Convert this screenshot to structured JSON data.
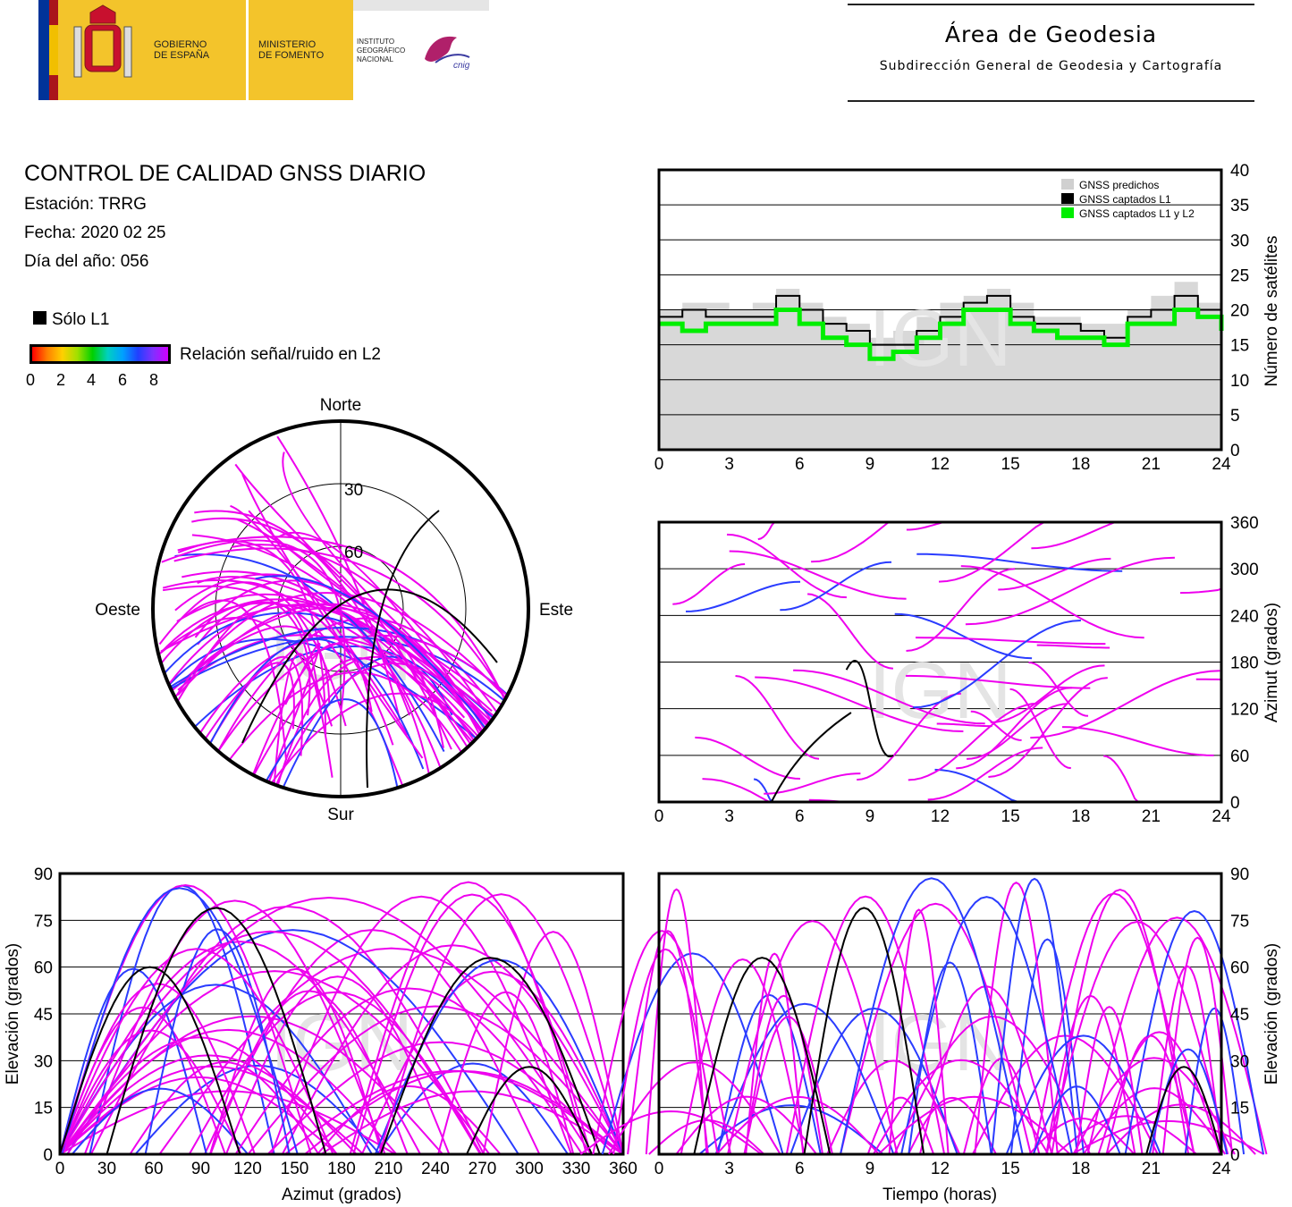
{
  "header": {
    "gov_label_1": "GOBIERNO",
    "gov_label_2": "DE ESPAÑA",
    "ministry_label_1": "MINISTERIO",
    "ministry_label_2": "DE FOMENTO",
    "ign_label_1": "INSTITUTO",
    "ign_label_2": "GEOGRÁFICO",
    "ign_label_3": "NACIONAL",
    "ign_logo_text": "cnig",
    "area_title": "Área de Geodesia",
    "area_subtitle": "Subdirección General de Geodesia y Cartografía"
  },
  "info": {
    "title": "CONTROL DE CALIDAD GNSS DIARIO",
    "station": "Estación: TRRG",
    "date": "Fecha: 2020 02 25",
    "doy": "Día del año: 056",
    "l1_only_label": "Sólo L1",
    "snr_label": "Relación señal/ruido en L2",
    "snr_ticks": [
      "0",
      "2",
      "4",
      "6",
      "8"
    ]
  },
  "colors": {
    "magenta": "#ee00ee",
    "blue": "#2a3cff",
    "black": "#000000",
    "green": "#00ee00",
    "gray_fill": "#d8d8d8",
    "predicted_gray": "#d0d0d0"
  },
  "watermark": "IGN",
  "chart_data": [
    {
      "type": "area",
      "id": "satellite-count",
      "ylabel": "Número de satélites",
      "x_ticks": [
        "0",
        "3",
        "6",
        "9",
        "12",
        "15",
        "18",
        "21",
        "24"
      ],
      "y_ticks": [
        "0",
        "5",
        "10",
        "15",
        "20",
        "25",
        "30",
        "35",
        "40"
      ],
      "xlim": [
        0,
        24
      ],
      "ylim": [
        0,
        40
      ],
      "legend": [
        "GNSS predichos",
        "GNSS captados L1",
        "GNSS captados L1 y L2"
      ],
      "legend_position": "top-right",
      "grid": true,
      "series": [
        {
          "name": "GNSS predichos",
          "x": [
            0,
            1,
            2,
            3,
            4,
            5,
            6,
            7,
            8,
            9,
            10,
            11,
            12,
            13,
            14,
            15,
            16,
            17,
            18,
            19,
            20,
            21,
            22,
            23,
            24
          ],
          "values": [
            20,
            21,
            21,
            20,
            21,
            23,
            21,
            19,
            18,
            16,
            17,
            19,
            21,
            22,
            23,
            21,
            19,
            19,
            18,
            18,
            20,
            22,
            24,
            21,
            19
          ]
        },
        {
          "name": "GNSS captados L1",
          "x": [
            0,
            1,
            2,
            3,
            4,
            5,
            6,
            7,
            8,
            9,
            10,
            11,
            12,
            13,
            14,
            15,
            16,
            17,
            18,
            19,
            20,
            21,
            22,
            23,
            24
          ],
          "values": [
            19,
            20,
            19,
            19,
            19,
            22,
            20,
            18,
            17,
            15,
            15,
            17,
            19,
            21,
            22,
            19,
            18,
            18,
            17,
            16,
            19,
            20,
            22,
            20,
            18
          ]
        },
        {
          "name": "GNSS captados L1 y L2",
          "x": [
            0,
            1,
            2,
            3,
            4,
            5,
            6,
            7,
            8,
            9,
            10,
            11,
            12,
            13,
            14,
            15,
            16,
            17,
            18,
            19,
            20,
            21,
            22,
            23,
            24
          ],
          "values": [
            18,
            17,
            18,
            18,
            18,
            20,
            18,
            16,
            15,
            13,
            14,
            16,
            18,
            20,
            20,
            18,
            17,
            16,
            16,
            15,
            18,
            18,
            20,
            19,
            17
          ]
        }
      ]
    },
    {
      "type": "scatter",
      "id": "azimuth-time",
      "ylabel": "Azimut (grados)",
      "x_ticks": [
        "0",
        "3",
        "6",
        "9",
        "12",
        "15",
        "18",
        "21",
        "24"
      ],
      "y_ticks": [
        "0",
        "60",
        "120",
        "180",
        "240",
        "300",
        "360"
      ],
      "xlim": [
        0,
        24
      ],
      "ylim": [
        0,
        360
      ],
      "grid": true
    },
    {
      "type": "scatter",
      "id": "sky-plot",
      "labels": {
        "north": "Norte",
        "south": "Sur",
        "east": "Este",
        "west": "Oeste",
        "ring30": "30",
        "ring60": "60"
      }
    },
    {
      "type": "scatter",
      "id": "elevation-azimuth",
      "xlabel": "Azimut (grados)",
      "ylabel": "Elevación (grados)",
      "x_ticks": [
        "0",
        "30",
        "60",
        "90",
        "120",
        "150",
        "180",
        "210",
        "240",
        "270",
        "300",
        "330",
        "360"
      ],
      "y_ticks": [
        "0",
        "15",
        "30",
        "45",
        "60",
        "75",
        "90"
      ],
      "xlim": [
        0,
        360
      ],
      "ylim": [
        0,
        90
      ],
      "grid": true
    },
    {
      "type": "scatter",
      "id": "elevation-time",
      "xlabel": "Tiempo (horas)",
      "ylabel": "Elevación (grados)",
      "x_ticks": [
        "0",
        "3",
        "6",
        "9",
        "12",
        "15",
        "18",
        "21",
        "24"
      ],
      "y_ticks": [
        "0",
        "15",
        "30",
        "45",
        "60",
        "75",
        "90"
      ],
      "xlim": [
        0,
        24
      ],
      "ylim": [
        0,
        90
      ],
      "grid": true
    }
  ]
}
